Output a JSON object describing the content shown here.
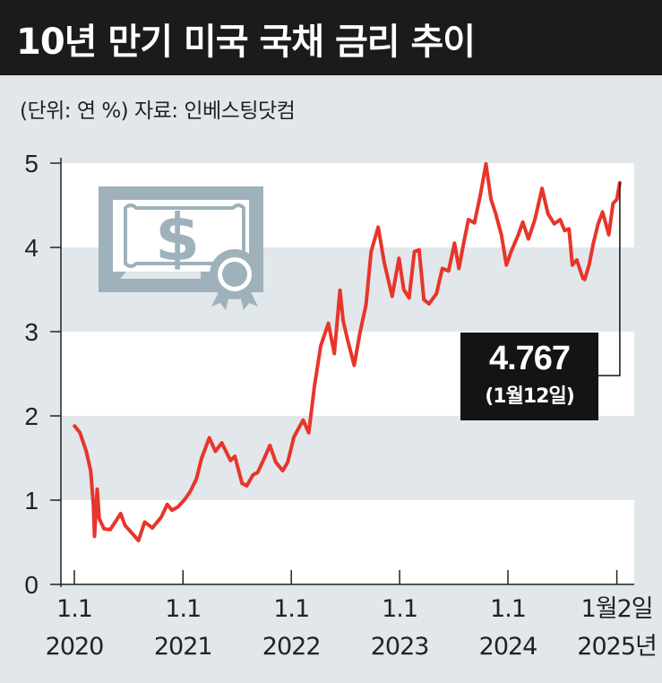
{
  "header": {
    "title": "10년 만기 미국 국채 금리 추이",
    "unit_source": "(단위: 연 %)  자료: 인베스팅닷컴"
  },
  "callout": {
    "value": "4.767",
    "date": "(1월12일)"
  },
  "colors": {
    "line": "#e8352b",
    "band_light": "#ffffff",
    "band_dark": "#e1e7ea",
    "title_bg": "#1b1b1b",
    "icon": "#9fb2bb"
  },
  "icon": "dollar-certificate-icon",
  "chart_data": {
    "type": "line",
    "title": "10년 만기 미국 국채 금리 추이",
    "ylabel": "",
    "xlabel": "",
    "ylim": [
      0,
      5
    ],
    "yticks": [
      "0",
      "1",
      "2",
      "3",
      "4",
      "5"
    ],
    "x_ticks": [
      {
        "top": "1.1",
        "bottom": "2020",
        "date": "2020-01-01"
      },
      {
        "top": "1.1",
        "bottom": "2021",
        "date": "2021-01-01"
      },
      {
        "top": "1.1",
        "bottom": "2022",
        "date": "2022-01-01"
      },
      {
        "top": "1.1",
        "bottom": "2023",
        "date": "2023-01-01"
      },
      {
        "top": "1.1",
        "bottom": "2024",
        "date": "2024-01-01"
      },
      {
        "top": "1월2일",
        "bottom": "2025년",
        "date": "2025-01-02"
      }
    ],
    "grid": "alternating horizontal bands",
    "series": [
      {
        "x": [
          "2020-01-02",
          "2020-01-20",
          "2020-02-10",
          "2020-02-25",
          "2020-03-05",
          "2020-03-09",
          "2020-03-18",
          "2020-03-25",
          "2020-04-10",
          "2020-05-01",
          "2020-06-05",
          "2020-06-20",
          "2020-07-10",
          "2020-08-04",
          "2020-08-25",
          "2020-09-20",
          "2020-10-20",
          "2020-11-09",
          "2020-11-25",
          "2020-12-15",
          "2021-01-05",
          "2021-01-25",
          "2021-02-15",
          "2021-03-05",
          "2021-03-31",
          "2021-04-20",
          "2021-05-12",
          "2021-06-10",
          "2021-06-25",
          "2021-07-19",
          "2021-08-04",
          "2021-08-25",
          "2021-09-10",
          "2021-10-05",
          "2021-10-21",
          "2021-11-10",
          "2021-12-03",
          "2021-12-20",
          "2022-01-10",
          "2022-02-10",
          "2022-03-01",
          "2022-03-20",
          "2022-04-10",
          "2022-05-06",
          "2022-05-26",
          "2022-06-14",
          "2022-06-25",
          "2022-07-10",
          "2022-08-01",
          "2022-08-20",
          "2022-09-10",
          "2022-09-27",
          "2022-10-21",
          "2022-11-10",
          "2022-12-07",
          "2022-12-30",
          "2023-01-15",
          "2023-02-02",
          "2023-02-20",
          "2023-03-08",
          "2023-03-24",
          "2023-04-10",
          "2023-05-05",
          "2023-05-25",
          "2023-06-15",
          "2023-07-05",
          "2023-07-20",
          "2023-08-05",
          "2023-08-21",
          "2023-09-10",
          "2023-09-30",
          "2023-10-19",
          "2023-11-05",
          "2023-11-20",
          "2023-12-10",
          "2023-12-27",
          "2024-01-12",
          "2024-02-05",
          "2024-02-20",
          "2024-03-10",
          "2024-04-01",
          "2024-04-25",
          "2024-05-15",
          "2024-06-05",
          "2024-06-25",
          "2024-07-10",
          "2024-07-25",
          "2024-08-05",
          "2024-08-20",
          "2024-09-10",
          "2024-09-16",
          "2024-10-01",
          "2024-10-15",
          "2024-10-31",
          "2024-11-15",
          "2024-12-06",
          "2024-12-20",
          "2025-01-02",
          "2025-01-08",
          "2025-01-12"
        ],
        "y": [
          1.88,
          1.8,
          1.58,
          1.35,
          0.95,
          0.57,
          1.13,
          0.78,
          0.66,
          0.65,
          0.84,
          0.7,
          0.62,
          0.52,
          0.74,
          0.67,
          0.8,
          0.95,
          0.88,
          0.92,
          1.0,
          1.1,
          1.25,
          1.5,
          1.74,
          1.58,
          1.68,
          1.47,
          1.52,
          1.2,
          1.17,
          1.3,
          1.33,
          1.52,
          1.65,
          1.45,
          1.35,
          1.45,
          1.75,
          1.95,
          1.8,
          2.35,
          2.83,
          3.1,
          2.74,
          3.49,
          3.13,
          2.9,
          2.6,
          2.98,
          3.32,
          3.95,
          4.24,
          3.82,
          3.42,
          3.87,
          3.5,
          3.4,
          3.95,
          3.97,
          3.38,
          3.33,
          3.45,
          3.75,
          3.72,
          4.05,
          3.75,
          4.05,
          4.33,
          4.29,
          4.62,
          4.99,
          4.57,
          4.41,
          4.15,
          3.79,
          3.95,
          4.15,
          4.3,
          4.1,
          4.33,
          4.7,
          4.4,
          4.28,
          4.33,
          4.2,
          4.22,
          3.79,
          3.85,
          3.63,
          3.62,
          3.8,
          4.05,
          4.28,
          4.42,
          4.15,
          4.52,
          4.57,
          4.69,
          4.767
        ]
      }
    ],
    "annotations": [
      "4.767",
      "(1월12일)"
    ]
  }
}
